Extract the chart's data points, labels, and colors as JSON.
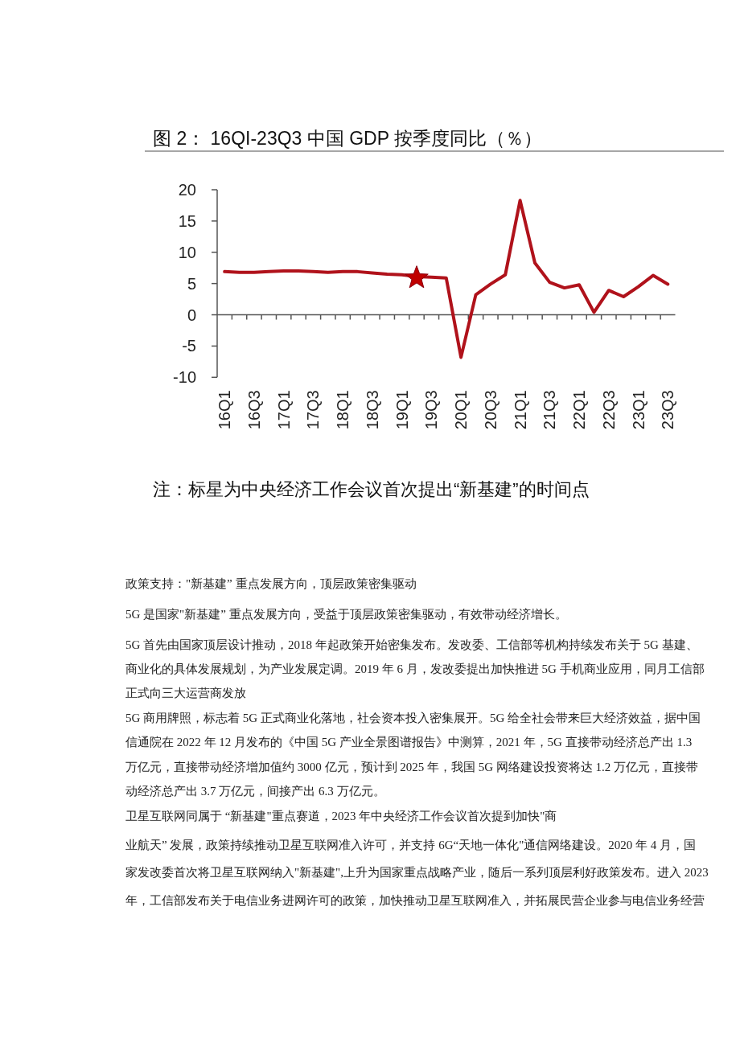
{
  "chart_data": {
    "type": "line",
    "title": "图 2： 16QI-23Q3 中国 GDP 按季度同比（％）",
    "categories": [
      "16Q1",
      null,
      "16Q3",
      null,
      "17Q1",
      null,
      "17Q3",
      null,
      "18Q1",
      null,
      "18Q3",
      null,
      "19Q1",
      null,
      "19Q3",
      null,
      "20Q1",
      null,
      "20Q3",
      null,
      "21Q1",
      null,
      "21Q3",
      null,
      "22Q1",
      null,
      "22Q3",
      null,
      "23Q1",
      null,
      "23Q3"
    ],
    "series": [
      {
        "color": "#b0121b",
        "marker": "none",
        "values": [
          6.9,
          6.8,
          6.8,
          6.9,
          7.0,
          7.0,
          6.9,
          6.8,
          6.9,
          6.9,
          6.7,
          6.5,
          6.4,
          6.1,
          6.0,
          5.9,
          -6.8,
          3.2,
          4.9,
          6.4,
          18.3,
          8.3,
          5.2,
          4.3,
          4.8,
          0.4,
          3.9,
          2.9,
          4.5,
          6.3,
          4.9
        ]
      },
      {
        "type": "scatter",
        "marker": "star",
        "color": "#c00000",
        "values": [
          null,
          null,
          null,
          null,
          null,
          null,
          null,
          null,
          null,
          null,
          null,
          null,
          null,
          5.9,
          null,
          null,
          null,
          null,
          null,
          null,
          null,
          null,
          null,
          null,
          null,
          null,
          null,
          null,
          null,
          null,
          null
        ]
      }
    ],
    "ylim": [
      -10,
      20
    ],
    "yticks": [
      -10,
      -5,
      0,
      5,
      10,
      15,
      20
    ],
    "annotations": [
      "注：标星为中央经济工作会议首次提出“新基建”的时间点",
      "政策支持：\"新基建” 重点发展方向，顶层政策密集驱动",
      "5G 是国家\"新基建” 重点发展方向，受益于顶层政策密集驱动，有效带动经济增长。",
      "5G 首先由国家顶层设计推动，2018 年起政策开始密集发布。发改委、工信部等机构持续发布关于 5G 基建、",
      "商业化的具体发展规划，为产业发展定调。2019 年 6 月，发改委提出加快推进 5G 手机商业应用，同月工信部",
      "正式向三大运营商发放",
      "5G 商用牌照，标志着 5G 正式商业化落地，社会资本投入密集展开。5G 给全社会带来巨大经济效益，据中国",
      "信通院在 2022 年 12 月发布的《中国 5G 产业全景图谱报告》中测算，2021 年，5G 直接带动经济总产出 1.3",
      "万亿元，直接带动经济增加值约 3000 亿元，预计到 2025 年，我国 5G 网络建设投资将达 1.2 万亿元，直接带",
      "动经济总产出 3.7 万亿元，间接产出 6.3 万亿元。",
      "卫星互联网同属于 “新基建\"重点赛道，2023 年中央经济工作会议首次提到加快\"商",
      "业航天” 发展，政策持续推动卫星互联网准入许可，并支持 6G“天地一体化\"通信网络建设。2020 年 4 月，国",
      "家发改委首次将卫星互联网纳入\"新基建\",上升为国家重点战略产业，随后一系列顶层利好政策发布。进入 2023",
      "年，工信部发布关于电信业务进网许可的政策，加快推动卫星互联网准入，并拓展民营企业参与电信业务经营"
    ]
  }
}
